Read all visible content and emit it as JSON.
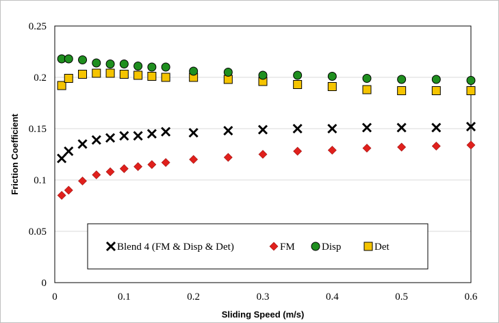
{
  "chart_data": {
    "type": "scatter",
    "title": "",
    "xlabel": "Sliding Speed (m/s)",
    "ylabel": "Friction Coefficient",
    "xlim": [
      0,
      0.6
    ],
    "ylim": [
      0,
      0.25
    ],
    "xticks": [
      "0",
      "0.1",
      "0.2",
      "0.3",
      "0.4",
      "0.5",
      "0.6"
    ],
    "yticks": [
      "0",
      "0.05",
      "0.1",
      "0.15",
      "0.2",
      "0.25"
    ],
    "grid": "horizontal",
    "legend_position": "bottom-inside",
    "series": [
      {
        "name": "Blend 4 (FM & Disp & Det)",
        "marker": "x",
        "color": "#000000",
        "x": [
          0.01,
          0.02,
          0.04,
          0.06,
          0.08,
          0.1,
          0.12,
          0.14,
          0.16,
          0.2,
          0.25,
          0.3,
          0.35,
          0.4,
          0.45,
          0.5,
          0.55,
          0.6
        ],
        "y": [
          0.121,
          0.128,
          0.135,
          0.139,
          0.141,
          0.143,
          0.143,
          0.145,
          0.147,
          0.146,
          0.148,
          0.149,
          0.15,
          0.15,
          0.151,
          0.151,
          0.151,
          0.152
        ]
      },
      {
        "name": "FM",
        "marker": "diamond",
        "color": "#e0201c",
        "x": [
          0.01,
          0.02,
          0.04,
          0.06,
          0.08,
          0.1,
          0.12,
          0.14,
          0.16,
          0.2,
          0.25,
          0.3,
          0.35,
          0.4,
          0.45,
          0.5,
          0.55,
          0.6
        ],
        "y": [
          0.085,
          0.09,
          0.099,
          0.105,
          0.108,
          0.111,
          0.113,
          0.115,
          0.117,
          0.12,
          0.122,
          0.125,
          0.128,
          0.129,
          0.131,
          0.132,
          0.133,
          0.134
        ]
      },
      {
        "name": "Disp",
        "marker": "circle",
        "color": "#1f8f1f",
        "x": [
          0.01,
          0.02,
          0.04,
          0.06,
          0.08,
          0.1,
          0.12,
          0.14,
          0.16,
          0.2,
          0.25,
          0.3,
          0.35,
          0.4,
          0.45,
          0.5,
          0.55,
          0.6
        ],
        "y": [
          0.218,
          0.218,
          0.217,
          0.214,
          0.213,
          0.213,
          0.211,
          0.21,
          0.21,
          0.206,
          0.205,
          0.202,
          0.202,
          0.201,
          0.199,
          0.198,
          0.198,
          0.197
        ]
      },
      {
        "name": "Det",
        "marker": "square",
        "color": "#f5c400",
        "x": [
          0.01,
          0.02,
          0.04,
          0.06,
          0.08,
          0.1,
          0.12,
          0.14,
          0.16,
          0.2,
          0.25,
          0.3,
          0.35,
          0.4,
          0.45,
          0.5,
          0.55,
          0.6
        ],
        "y": [
          0.192,
          0.199,
          0.203,
          0.204,
          0.204,
          0.203,
          0.202,
          0.201,
          0.2,
          0.2,
          0.198,
          0.196,
          0.193,
          0.191,
          0.188,
          0.187,
          0.187,
          0.187
        ]
      }
    ]
  }
}
